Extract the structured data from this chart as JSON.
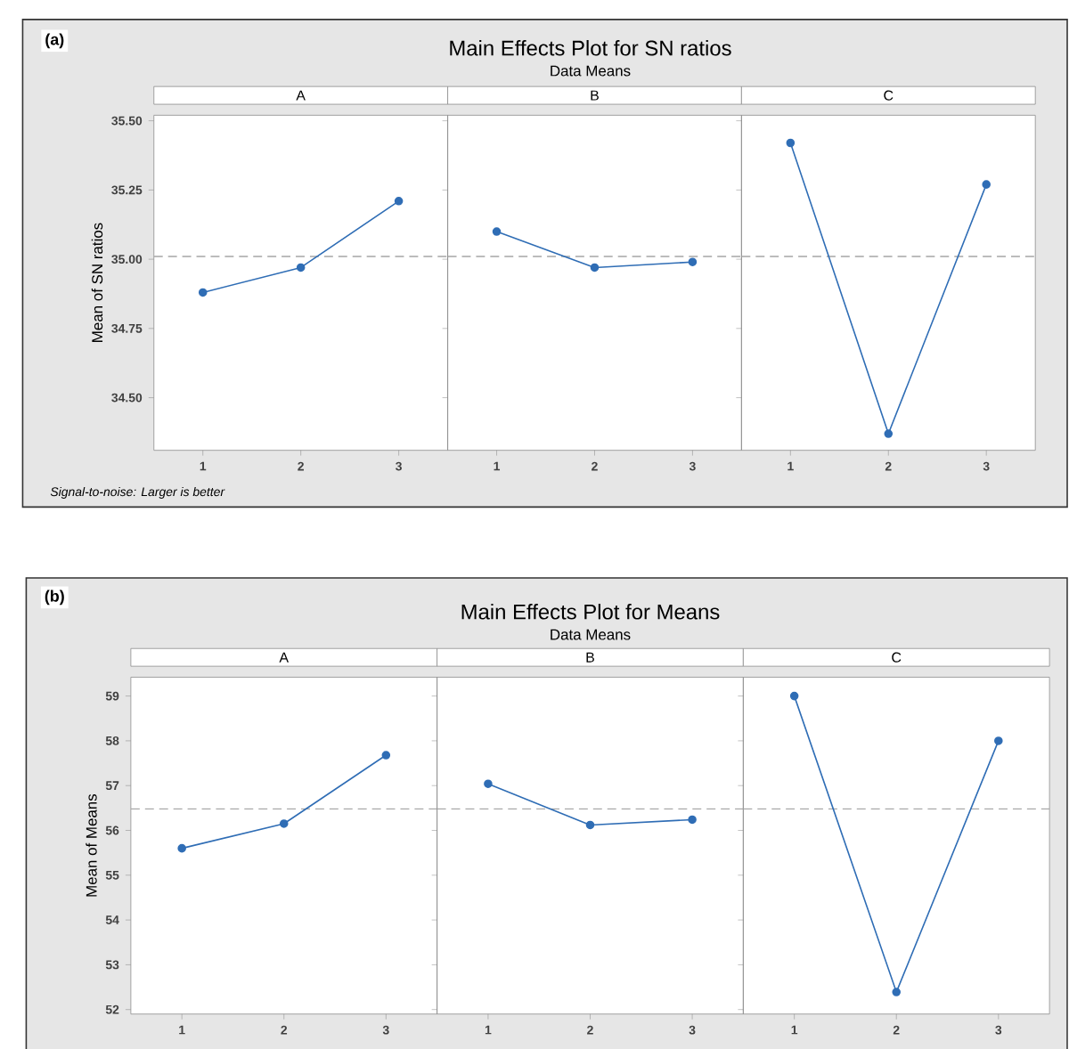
{
  "chart_data": [
    {
      "type": "line",
      "title": "A",
      "ylabel": "Mean of SN ratios",
      "annotations": [
        "(a)",
        "Main Effects Plot for SN ratios",
        "Data Means",
        "Signal-to-noise: Larger is better"
      ],
      "categories": [
        "1",
        "2",
        "3"
      ],
      "values": [
        34.88,
        34.97,
        35.21
      ],
      "color": "#2f6db5",
      "marker": "circle",
      "ylim": [
        34.31,
        35.52
      ],
      "yticks": [
        {
          "value": 34.5,
          "label": "34.50"
        },
        {
          "value": 34.75,
          "label": "34.75"
        },
        {
          "value": 35.0,
          "label": "35.00"
        },
        {
          "value": 35.25,
          "label": "35.25"
        },
        {
          "value": 35.5,
          "label": "35.50"
        }
      ],
      "ref_lines": [
        {
          "axis": "y",
          "value": 35.01,
          "color": "#a6a6a6",
          "line_style": "dashed"
        }
      ]
    },
    {
      "type": "line",
      "title": "B",
      "categories": [
        "1",
        "2",
        "3"
      ],
      "values": [
        35.1,
        34.97,
        34.99
      ],
      "color": "#2f6db5",
      "marker": "circle",
      "ylim": [
        34.31,
        35.52
      ],
      "yticks": [
        {
          "value": 34.5,
          "label": null
        },
        {
          "value": 34.75,
          "label": null
        },
        {
          "value": 35.0,
          "label": null
        },
        {
          "value": 35.25,
          "label": null
        },
        {
          "value": 35.5,
          "label": null
        }
      ],
      "tick_labels": "x",
      "ref_lines": [
        {
          "axis": "y",
          "value": 35.01,
          "color": "#a6a6a6",
          "line_style": "dashed"
        }
      ]
    },
    {
      "type": "line",
      "title": "C",
      "categories": [
        "1",
        "2",
        "3"
      ],
      "values": [
        35.42,
        34.37,
        35.27
      ],
      "color": "#2f6db5",
      "marker": "circle",
      "ylim": [
        34.31,
        35.52
      ],
      "yticks": [
        {
          "value": 34.5,
          "label": null
        },
        {
          "value": 34.75,
          "label": null
        },
        {
          "value": 35.0,
          "label": null
        },
        {
          "value": 35.25,
          "label": null
        },
        {
          "value": 35.5,
          "label": null
        }
      ],
      "tick_labels": "x",
      "ref_lines": [
        {
          "axis": "y",
          "value": 35.01,
          "color": "#a6a6a6",
          "line_style": "dashed"
        }
      ]
    },
    {
      "type": "line",
      "title": "A",
      "ylabel": "Mean of Means",
      "annotations": [
        "(b)",
        "Main Effects Plot for Means",
        "Data Means"
      ],
      "categories": [
        "1",
        "2",
        "3"
      ],
      "values": [
        55.6,
        56.15,
        57.68
      ],
      "color": "#2f6db5",
      "marker": "circle",
      "ylim": [
        51.9,
        59.42
      ],
      "yticks": [
        52,
        53,
        54,
        55,
        56,
        57,
        58,
        59
      ],
      "ref_lines": [
        {
          "axis": "y",
          "value": 56.48,
          "color": "#a6a6a6",
          "line_style": "dashed"
        }
      ]
    },
    {
      "type": "line",
      "title": "B",
      "categories": [
        "1",
        "2",
        "3"
      ],
      "values": [
        57.04,
        56.12,
        56.24
      ],
      "color": "#2f6db5",
      "marker": "circle",
      "ylim": [
        51.9,
        59.42
      ],
      "yticks": [
        {
          "value": 52,
          "label": null
        },
        {
          "value": 53,
          "label": null
        },
        {
          "value": 54,
          "label": null
        },
        {
          "value": 55,
          "label": null
        },
        {
          "value": 56,
          "label": null
        },
        {
          "value": 57,
          "label": null
        },
        {
          "value": 58,
          "label": null
        },
        {
          "value": 59,
          "label": null
        }
      ],
      "tick_labels": "x",
      "ref_lines": [
        {
          "axis": "y",
          "value": 56.48,
          "color": "#a6a6a6",
          "line_style": "dashed"
        }
      ]
    },
    {
      "type": "line",
      "title": "C",
      "categories": [
        "1",
        "2",
        "3"
      ],
      "values": [
        59.0,
        52.39,
        58.0
      ],
      "color": "#2f6db5",
      "marker": "circle",
      "ylim": [
        51.9,
        59.42
      ],
      "yticks": [
        {
          "value": 52,
          "label": null
        },
        {
          "value": 53,
          "label": null
        },
        {
          "value": 54,
          "label": null
        },
        {
          "value": 55,
          "label": null
        },
        {
          "value": 56,
          "label": null
        },
        {
          "value": 57,
          "label": null
        },
        {
          "value": 58,
          "label": null
        },
        {
          "value": 59,
          "label": null
        }
      ],
      "tick_labels": "x",
      "ref_lines": [
        {
          "axis": "y",
          "value": 56.48,
          "color": "#a6a6a6",
          "line_style": "dashed"
        }
      ]
    }
  ]
}
